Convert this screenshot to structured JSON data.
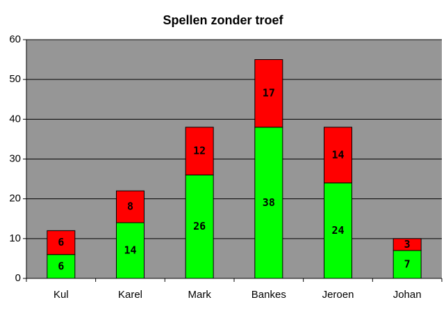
{
  "chart_data": {
    "type": "stacked-bar",
    "title": "Spellen zonder troef",
    "categories": [
      "Kul",
      "Karel",
      "Mark",
      "Bankes",
      "Jeroen",
      "Johan"
    ],
    "series": [
      {
        "color": "#00ff00",
        "values": [
          6,
          14,
          26,
          38,
          24,
          7
        ]
      },
      {
        "color": "#ff0000",
        "values": [
          6,
          8,
          12,
          17,
          14,
          3
        ]
      }
    ],
    "ylim": [
      0,
      60
    ],
    "yticks": [
      0,
      10,
      20,
      30,
      40,
      50,
      60
    ],
    "grid": true
  }
}
